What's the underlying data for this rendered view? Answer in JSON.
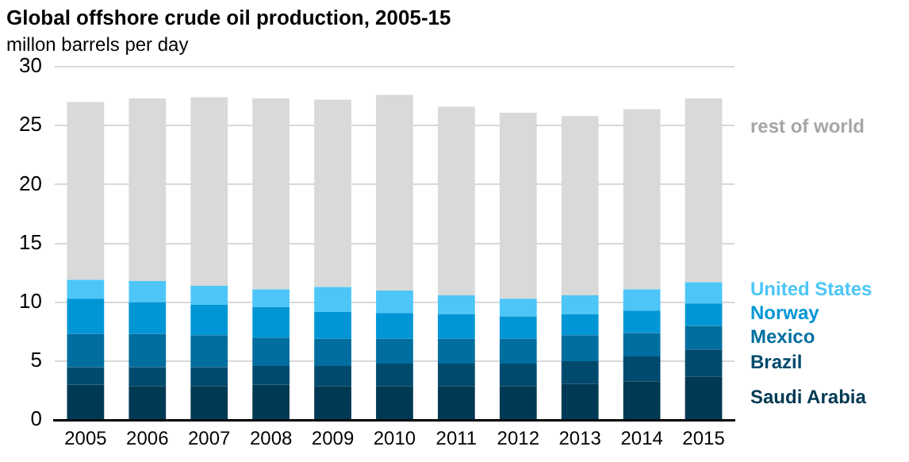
{
  "chart_data": {
    "type": "bar",
    "title": "Global offshore crude oil production, 2005-15",
    "subtitle": "millon barrels per day",
    "categories": [
      "2005",
      "2006",
      "2007",
      "2008",
      "2009",
      "2010",
      "2011",
      "2012",
      "2013",
      "2014",
      "2015"
    ],
    "stacked": true,
    "legend": "right",
    "grid": "y",
    "ylim": [
      0,
      30
    ],
    "yticks": [
      0,
      5,
      10,
      15,
      20,
      25,
      30
    ],
    "series": [
      {
        "name": "Saudi Arabia",
        "color": "#003953",
        "values": [
          3.0,
          2.9,
          2.9,
          3.0,
          2.9,
          2.9,
          2.9,
          2.9,
          3.1,
          3.3,
          3.7
        ]
      },
      {
        "name": "Brazil",
        "color": "#004a6e",
        "values": [
          1.5,
          1.6,
          1.6,
          1.6,
          1.7,
          1.9,
          1.9,
          1.9,
          1.9,
          2.1,
          2.3
        ]
      },
      {
        "name": "Mexico",
        "color": "#006e9f",
        "values": [
          2.8,
          2.8,
          2.7,
          2.4,
          2.3,
          2.1,
          2.1,
          2.1,
          2.2,
          2.0,
          2.0
        ]
      },
      {
        "name": "Norway",
        "color": "#0096d6",
        "values": [
          3.0,
          2.7,
          2.6,
          2.6,
          2.3,
          2.2,
          2.1,
          1.9,
          1.8,
          1.9,
          1.9
        ]
      },
      {
        "name": "United States",
        "color": "#4dc6f7",
        "values": [
          1.6,
          1.8,
          1.6,
          1.5,
          2.1,
          1.9,
          1.6,
          1.5,
          1.6,
          1.8,
          1.8
        ]
      },
      {
        "name": "rest of world",
        "color": "#d9d9d9",
        "values": [
          15.1,
          15.5,
          16.0,
          16.2,
          15.9,
          16.6,
          16.0,
          15.8,
          15.2,
          15.3,
          15.6
        ]
      }
    ]
  }
}
